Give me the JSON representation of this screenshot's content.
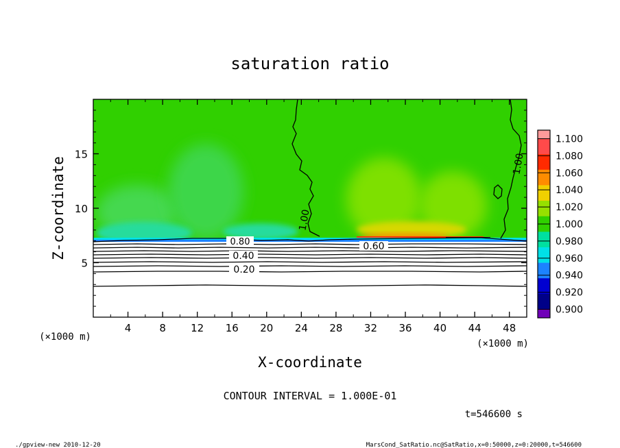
{
  "chart_data": {
    "type": "heatmap",
    "title": "saturation ratio",
    "xlabel": "X-coordinate",
    "ylabel": "Z-coordinate",
    "x_unit": "(×1000 m)",
    "z_unit": "(×1000 m)",
    "xlim": [
      0,
      50
    ],
    "ylim": [
      0,
      20
    ],
    "x_ticks": [
      4,
      8,
      12,
      16,
      20,
      24,
      28,
      32,
      36,
      40,
      44,
      48
    ],
    "y_ticks": [
      5,
      10,
      15
    ],
    "colorbar": {
      "levels": [
        "1.100",
        "1.080",
        "1.060",
        "1.040",
        "1.020",
        "1.000",
        "0.980",
        "0.960",
        "0.940",
        "0.920",
        "0.900"
      ],
      "colors": [
        "#ff9a9a",
        "#ff4a4a",
        "#ff2a00",
        "#ff8c00",
        "#f0d000",
        "#96e000",
        "#30d000",
        "#00e0a0",
        "#00e0e8",
        "#1c82ff",
        "#0000d0",
        "#000088",
        "#7000b8"
      ]
    },
    "contour_labels": [
      {
        "text": "1.00",
        "x": 24.3,
        "z": 8.8
      },
      {
        "text": "1.00",
        "x": 49.3,
        "z": 14.0
      },
      {
        "text": "0.80",
        "x": 17.0,
        "z": 6.8
      },
      {
        "text": "0.60",
        "x": 32.3,
        "z": 6.3
      },
      {
        "text": "0.40",
        "x": 17.2,
        "z": 5.6
      },
      {
        "text": "0.20",
        "x": 17.2,
        "z": 4.3
      }
    ],
    "contour_interval_text": "CONTOUR INTERVAL = 1.000E-01",
    "time_text": "t=546600 s"
  },
  "footer": {
    "left": "./gpview-new  2010-12-20",
    "right": "MarsCond_SatRatio.nc@SatRatio,x=0:50000,z=0:20000,t=546600"
  }
}
